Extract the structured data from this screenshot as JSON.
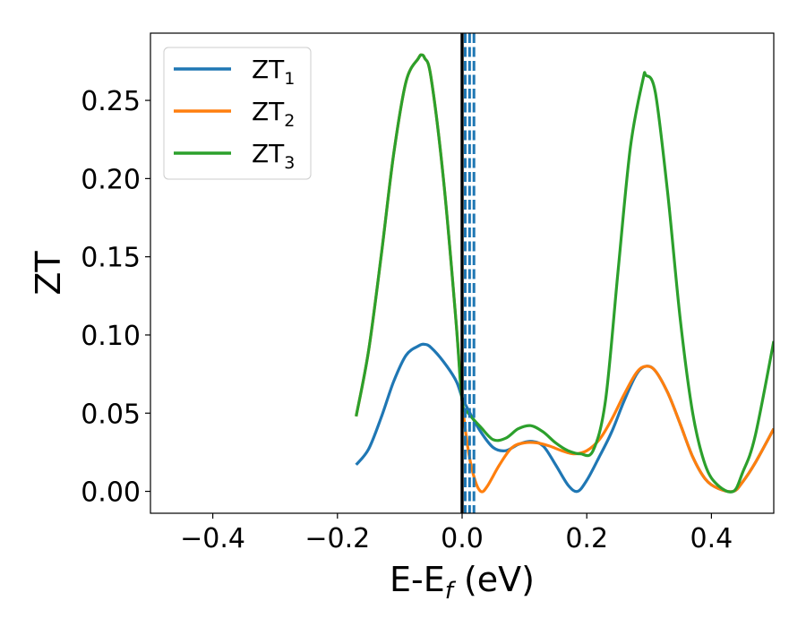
{
  "chart_data": {
    "type": "line",
    "title": "",
    "xlabel": {
      "main": "E-E",
      "sub": "f",
      "unit": " (eV)"
    },
    "ylabel": "ZT",
    "xlim": [
      -0.5,
      0.5
    ],
    "ylim": [
      -0.014,
      0.293
    ],
    "xticks": [
      -0.4,
      -0.2,
      0.0,
      0.2,
      0.4
    ],
    "xtick_labels": [
      "−0.4",
      "−0.2",
      "0.0",
      "0.2",
      "0.4"
    ],
    "yticks": [
      0.0,
      0.05,
      0.1,
      0.15,
      0.2,
      0.25
    ],
    "ytick_labels": [
      "0.00",
      "0.05",
      "0.10",
      "0.15",
      "0.20",
      "0.25"
    ],
    "grid": false,
    "legend_position": "top-left",
    "vertical_lines": [
      {
        "x": 0.0,
        "style": "solid",
        "color": "#000000"
      },
      {
        "x": 0.005,
        "style": "dashed",
        "color": "#1f77b4"
      },
      {
        "x": 0.012,
        "style": "dashed",
        "color": "#1f77b4"
      },
      {
        "x": 0.019,
        "style": "dashed",
        "color": "#1f77b4"
      }
    ],
    "series": [
      {
        "name": "ZT",
        "sub": "1",
        "color": "#1f77b4",
        "x": [
          -0.17,
          -0.15,
          -0.13,
          -0.11,
          -0.09,
          -0.07,
          -0.06,
          -0.05,
          -0.03,
          -0.01,
          0.0,
          0.01,
          0.03,
          0.05,
          0.07,
          0.09,
          0.11,
          0.13,
          0.15,
          0.17,
          0.185,
          0.2,
          0.22,
          0.24,
          0.26,
          0.28,
          0.295,
          0.31,
          0.33,
          0.35,
          0.37,
          0.39,
          0.41,
          0.435,
          0.45,
          0.47,
          0.5
        ],
        "y": [
          0.017,
          0.027,
          0.047,
          0.07,
          0.087,
          0.093,
          0.094,
          0.092,
          0.083,
          0.071,
          0.06,
          0.052,
          0.038,
          0.028,
          0.026,
          0.03,
          0.032,
          0.029,
          0.017,
          0.004,
          0.0,
          0.007,
          0.022,
          0.038,
          0.058,
          0.075,
          0.08,
          0.077,
          0.063,
          0.043,
          0.022,
          0.008,
          0.002,
          0.0,
          0.006,
          0.018,
          0.04
        ]
      },
      {
        "name": "ZT",
        "sub": "2",
        "color": "#ff7f0e",
        "x": [
          -0.17,
          -0.15,
          -0.13,
          -0.11,
          -0.09,
          -0.07,
          -0.065,
          -0.06,
          -0.05,
          -0.03,
          -0.01,
          0.0,
          0.01,
          0.02,
          0.03,
          0.04,
          0.06,
          0.08,
          0.1,
          0.12,
          0.14,
          0.16,
          0.18,
          0.2,
          0.22,
          0.24,
          0.26,
          0.28,
          0.295,
          0.31,
          0.33,
          0.35,
          0.37,
          0.39,
          0.41,
          0.435,
          0.45,
          0.47,
          0.5
        ],
        "y": [
          0.048,
          0.09,
          0.15,
          0.215,
          0.262,
          0.277,
          0.279,
          0.277,
          0.265,
          0.2,
          0.11,
          0.058,
          0.026,
          0.008,
          0.0,
          0.003,
          0.017,
          0.028,
          0.031,
          0.031,
          0.029,
          0.026,
          0.024,
          0.026,
          0.033,
          0.046,
          0.062,
          0.076,
          0.08,
          0.077,
          0.063,
          0.043,
          0.022,
          0.008,
          0.002,
          0.0,
          0.006,
          0.018,
          0.04
        ]
      },
      {
        "name": "ZT",
        "sub": "3",
        "color": "#2ca02c",
        "x": [
          -0.17,
          -0.15,
          -0.13,
          -0.11,
          -0.09,
          -0.07,
          -0.065,
          -0.06,
          -0.05,
          -0.03,
          -0.01,
          0.0,
          0.01,
          0.03,
          0.05,
          0.07,
          0.09,
          0.11,
          0.13,
          0.15,
          0.17,
          0.19,
          0.21,
          0.23,
          0.25,
          0.27,
          0.29,
          0.295,
          0.31,
          0.33,
          0.35,
          0.37,
          0.39,
          0.41,
          0.435,
          0.45,
          0.47,
          0.5
        ],
        "y": [
          0.048,
          0.09,
          0.15,
          0.215,
          0.262,
          0.277,
          0.279,
          0.277,
          0.265,
          0.2,
          0.11,
          0.058,
          0.05,
          0.041,
          0.033,
          0.034,
          0.04,
          0.042,
          0.038,
          0.031,
          0.026,
          0.024,
          0.026,
          0.058,
          0.14,
          0.22,
          0.263,
          0.266,
          0.255,
          0.19,
          0.11,
          0.05,
          0.017,
          0.004,
          0.0,
          0.012,
          0.035,
          0.096
        ]
      }
    ]
  }
}
